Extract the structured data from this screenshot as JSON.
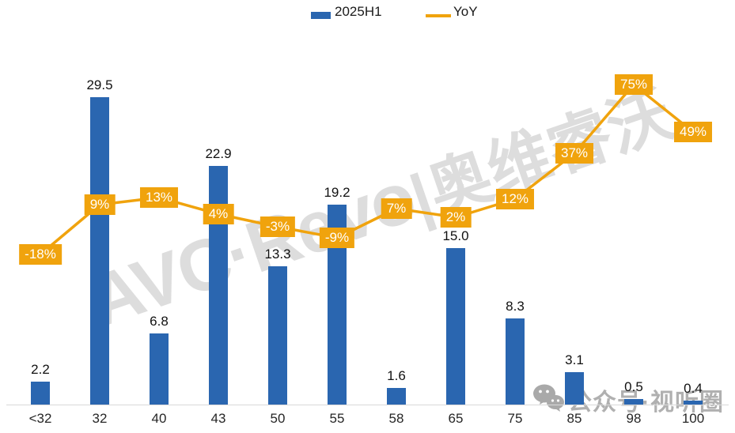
{
  "legend": {
    "items": [
      {
        "label": "2025H1",
        "type": "bar",
        "color": "#2A66B0"
      },
      {
        "label": "YoY",
        "type": "line",
        "color": "#F0A30D"
      }
    ]
  },
  "watermark": {
    "brand_latin": "AVC·Revo",
    "brand_cjk": "|奥维睿沃",
    "wechat_text": "公众号·视听圈"
  },
  "colors": {
    "bar": "#2A66B0",
    "line": "#F0A30D",
    "axis": "#D9D9D9"
  },
  "chart_data": {
    "type": "bar",
    "subtype": "bar+line combo",
    "categories": [
      "<32",
      "32",
      "40",
      "43",
      "50",
      "55",
      "58",
      "65",
      "75",
      "85",
      "98",
      "100"
    ],
    "series": [
      {
        "name": "2025H1",
        "type": "bar",
        "color": "#2A66B0",
        "values": [
          2.2,
          29.5,
          6.8,
          22.9,
          13.3,
          19.2,
          1.6,
          15.0,
          8.3,
          3.1,
          0.5,
          0.4
        ],
        "labels": [
          "2.2",
          "29.5",
          "6.8",
          "22.9",
          "13.3",
          "19.2",
          "1.6",
          "15.0",
          "8.3",
          "3.1",
          "0.5",
          "0.4"
        ]
      },
      {
        "name": "YoY",
        "type": "line",
        "color": "#F0A30D",
        "values": [
          -18,
          9,
          13,
          4,
          -3,
          -9,
          7,
          2,
          12,
          37,
          75,
          49
        ],
        "labels": [
          "-18%",
          "9%",
          "13%",
          "4%",
          "-3%",
          "-9%",
          "7%",
          "2%",
          "12%",
          "37%",
          "75%",
          "49%"
        ]
      }
    ],
    "title": "",
    "xlabel": "",
    "ylabel": "",
    "grid": false,
    "legend_position": "top-center",
    "bar_axis_range": [
      0,
      30.2
    ],
    "line_axis_range_pct": [
      -100,
      100
    ]
  }
}
